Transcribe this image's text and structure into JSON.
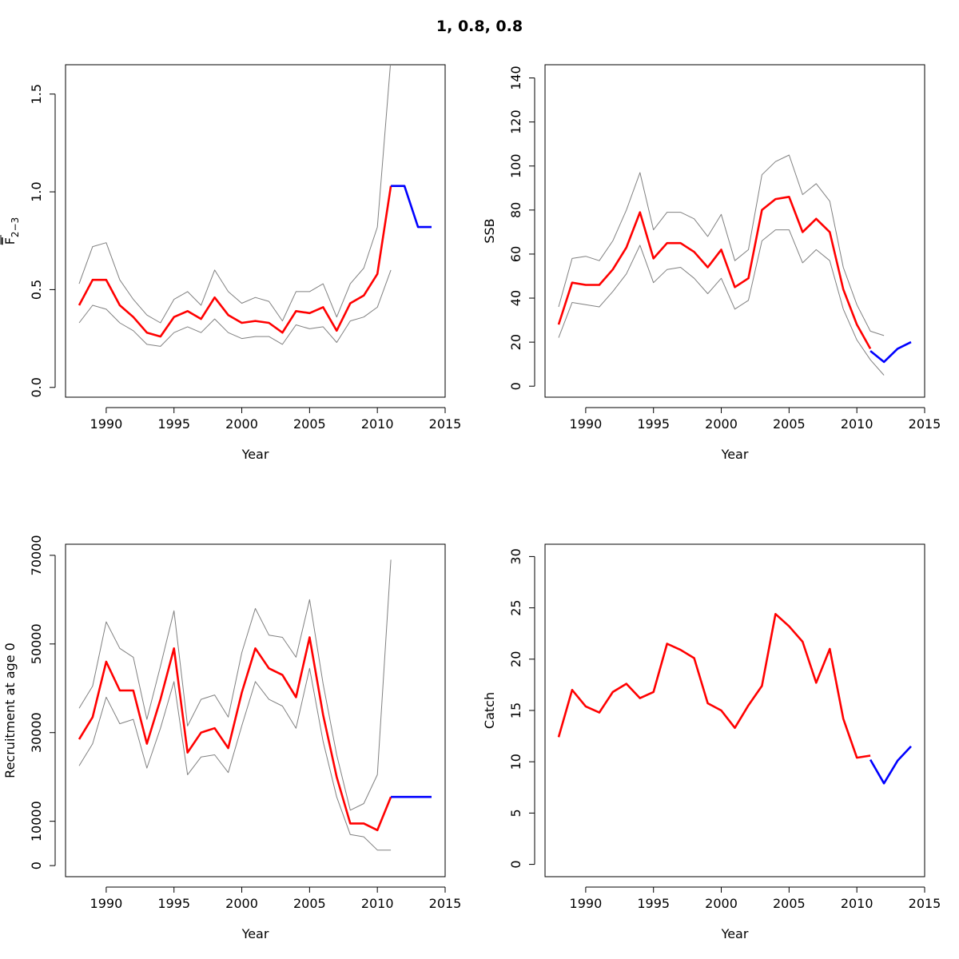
{
  "title": "1, 0.8, 0.8",
  "colors": {
    "estimate": "#ff0000",
    "forecast": "#0000ff",
    "ci": "#808080",
    "axis": "#000000"
  },
  "chart_data": [
    {
      "type": "line",
      "xlabel": "Year",
      "ylabel": "F",
      "ylabel_sub": "2−3",
      "xlim": [
        1987,
        2015
      ],
      "ylim": [
        -0.05,
        1.65
      ],
      "xticks": [
        1990,
        1995,
        2000,
        2005,
        2010,
        2015
      ],
      "yticks": [
        0.0,
        0.5,
        1.0,
        1.5
      ],
      "ytick_labels": [
        "0.0",
        "0.5",
        "1.0",
        "1.5"
      ],
      "series": [
        {
          "role": "ci",
          "x": [
            1988,
            1989,
            1990,
            1991,
            1992,
            1993,
            1994,
            1995,
            1996,
            1997,
            1998,
            1999,
            2000,
            2001,
            2002,
            2003,
            2004,
            2005,
            2006,
            2007,
            2008,
            2009,
            2010,
            2011
          ],
          "values": [
            0.53,
            0.72,
            0.74,
            0.55,
            0.45,
            0.37,
            0.33,
            0.45,
            0.49,
            0.42,
            0.6,
            0.49,
            0.43,
            0.46,
            0.44,
            0.34,
            0.49,
            0.49,
            0.53,
            0.36,
            0.53,
            0.61,
            0.82,
            1.68
          ]
        },
        {
          "role": "ci",
          "x": [
            1988,
            1989,
            1990,
            1991,
            1992,
            1993,
            1994,
            1995,
            1996,
            1997,
            1998,
            1999,
            2000,
            2001,
            2002,
            2003,
            2004,
            2005,
            2006,
            2007,
            2008,
            2009,
            2010,
            2011
          ],
          "values": [
            0.33,
            0.42,
            0.4,
            0.33,
            0.29,
            0.22,
            0.21,
            0.28,
            0.31,
            0.28,
            0.35,
            0.28,
            0.25,
            0.26,
            0.26,
            0.22,
            0.32,
            0.3,
            0.31,
            0.23,
            0.34,
            0.36,
            0.41,
            0.6
          ]
        },
        {
          "role": "estimate",
          "x": [
            1988,
            1989,
            1990,
            1991,
            1992,
            1993,
            1994,
            1995,
            1996,
            1997,
            1998,
            1999,
            2000,
            2001,
            2002,
            2003,
            2004,
            2005,
            2006,
            2007,
            2008,
            2009,
            2010,
            2011
          ],
          "values": [
            0.42,
            0.55,
            0.55,
            0.42,
            0.36,
            0.28,
            0.26,
            0.36,
            0.39,
            0.35,
            0.46,
            0.37,
            0.33,
            0.34,
            0.33,
            0.28,
            0.39,
            0.38,
            0.41,
            0.29,
            0.43,
            0.47,
            0.58,
            1.03
          ]
        },
        {
          "role": "forecast",
          "x": [
            2011,
            2012,
            2013,
            2014
          ],
          "values": [
            1.03,
            1.03,
            0.82,
            0.82
          ]
        }
      ]
    },
    {
      "type": "line",
      "xlabel": "Year",
      "ylabel": "SSB",
      "xlim": [
        1987,
        2015
      ],
      "ylim": [
        -5,
        146
      ],
      "xticks": [
        1990,
        1995,
        2000,
        2005,
        2010,
        2015
      ],
      "yticks": [
        0,
        20,
        40,
        60,
        80,
        100,
        120,
        140
      ],
      "ytick_labels": [
        "0",
        "20",
        "40",
        "60",
        "80",
        "100",
        "120",
        "140"
      ],
      "series": [
        {
          "role": "ci",
          "x": [
            1988,
            1989,
            1990,
            1991,
            1992,
            1993,
            1994,
            1995,
            1996,
            1997,
            1998,
            1999,
            2000,
            2001,
            2002,
            2003,
            2004,
            2005,
            2006,
            2007,
            2008,
            2009,
            2010,
            2011,
            2012
          ],
          "values": [
            36,
            58,
            59,
            57,
            66,
            80,
            97,
            71,
            79,
            79,
            76,
            68,
            78,
            57,
            62,
            96,
            102,
            105,
            87,
            92,
            84,
            54,
            37,
            25,
            23
          ]
        },
        {
          "role": "ci",
          "x": [
            1988,
            1989,
            1990,
            1991,
            1992,
            1993,
            1994,
            1995,
            1996,
            1997,
            1998,
            1999,
            2000,
            2001,
            2002,
            2003,
            2004,
            2005,
            2006,
            2007,
            2008,
            2009,
            2010,
            2011,
            2012
          ],
          "values": [
            22,
            38,
            37,
            36,
            43,
            51,
            64,
            47,
            53,
            54,
            49,
            42,
            49,
            35,
            39,
            66,
            71,
            71,
            56,
            62,
            57,
            35,
            21,
            12,
            5
          ]
        },
        {
          "role": "estimate",
          "x": [
            1988,
            1989,
            1990,
            1991,
            1992,
            1993,
            1994,
            1995,
            1996,
            1997,
            1998,
            1999,
            2000,
            2001,
            2002,
            2003,
            2004,
            2005,
            2006,
            2007,
            2008,
            2009,
            2010,
            2011
          ],
          "values": [
            28,
            47,
            46,
            46,
            53,
            63,
            79,
            58,
            65,
            65,
            61,
            54,
            62,
            45,
            49,
            80,
            85,
            86,
            70,
            76,
            70,
            44,
            28,
            17
          ]
        },
        {
          "role": "forecast",
          "x": [
            2011,
            2012,
            2013,
            2014
          ],
          "values": [
            16,
            11,
            17,
            20
          ]
        }
      ]
    },
    {
      "type": "line",
      "xlabel": "Year",
      "ylabel": "Recruitment at age 0",
      "xlim": [
        1987,
        2015
      ],
      "ylim": [
        -2500,
        72500
      ],
      "xticks": [
        1990,
        1995,
        2000,
        2005,
        2010,
        2015
      ],
      "yticks": [
        0,
        10000,
        30000,
        50000,
        70000
      ],
      "ytick_labels": [
        "0",
        "10000",
        "30000",
        "50000",
        "70000"
      ],
      "series": [
        {
          "role": "ci",
          "x": [
            1988,
            1989,
            1990,
            1991,
            1992,
            1993,
            1994,
            1995,
            1996,
            1997,
            1998,
            1999,
            2000,
            2001,
            2002,
            2003,
            2004,
            2005,
            2006,
            2007,
            2008,
            2009,
            2010,
            2011
          ],
          "values": [
            35500,
            40500,
            55000,
            49000,
            47000,
            33000,
            45000,
            57500,
            31500,
            37500,
            38500,
            33500,
            48000,
            58000,
            52000,
            51500,
            47000,
            60000,
            41000,
            25000,
            12500,
            14000,
            20500,
            69000
          ]
        },
        {
          "role": "ci",
          "x": [
            1988,
            1989,
            1990,
            1991,
            1992,
            1993,
            1994,
            1995,
            1996,
            1997,
            1998,
            1999,
            2000,
            2001,
            2002,
            2003,
            2004,
            2005,
            2006,
            2007,
            2008,
            2009,
            2010,
            2011
          ],
          "values": [
            22500,
            27500,
            38000,
            32000,
            33000,
            22000,
            31000,
            41500,
            20500,
            24500,
            25000,
            21000,
            31500,
            41500,
            37500,
            36000,
            31000,
            44500,
            28000,
            15500,
            7000,
            6500,
            3500,
            3500
          ]
        },
        {
          "role": "estimate",
          "x": [
            1988,
            1989,
            1990,
            1991,
            1992,
            1993,
            1994,
            1995,
            1996,
            1997,
            1998,
            1999,
            2000,
            2001,
            2002,
            2003,
            2004,
            2005,
            2006,
            2007,
            2008,
            2009,
            2010,
            2011
          ],
          "values": [
            28500,
            33500,
            46000,
            39500,
            39500,
            27500,
            37500,
            49000,
            25500,
            30000,
            31000,
            26500,
            39000,
            49000,
            44500,
            43000,
            38000,
            51500,
            34000,
            20000,
            9500,
            9500,
            8000,
            15500
          ]
        },
        {
          "role": "forecast",
          "x": [
            2011,
            2012,
            2013,
            2014
          ],
          "values": [
            15500,
            15500,
            15500,
            15500
          ]
        }
      ]
    },
    {
      "type": "line",
      "xlabel": "Year",
      "ylabel": "Catch",
      "xlim": [
        1987,
        2015
      ],
      "ylim": [
        -1.2,
        31.2
      ],
      "xticks": [
        1990,
        1995,
        2000,
        2005,
        2010,
        2015
      ],
      "yticks": [
        0,
        5,
        10,
        15,
        20,
        25,
        30
      ],
      "ytick_labels": [
        "0",
        "5",
        "10",
        "15",
        "20",
        "25",
        "30"
      ],
      "series": [
        {
          "role": "estimate",
          "x": [
            1988,
            1989,
            1990,
            1991,
            1992,
            1993,
            1994,
            1995,
            1996,
            1997,
            1998,
            1999,
            2000,
            2001,
            2002,
            2003,
            2004,
            2005,
            2006,
            2007,
            2008,
            2009,
            2010,
            2011
          ],
          "values": [
            12.4,
            17.0,
            15.4,
            14.8,
            16.8,
            17.6,
            16.2,
            16.8,
            21.5,
            20.9,
            20.1,
            15.7,
            15.0,
            13.3,
            15.5,
            17.4,
            24.4,
            23.2,
            21.7,
            17.7,
            21.0,
            14.2,
            10.4,
            10.6
          ]
        },
        {
          "role": "forecast",
          "x": [
            2011,
            2012,
            2013,
            2014
          ],
          "values": [
            10.2,
            7.9,
            10.1,
            11.5
          ]
        }
      ]
    }
  ]
}
